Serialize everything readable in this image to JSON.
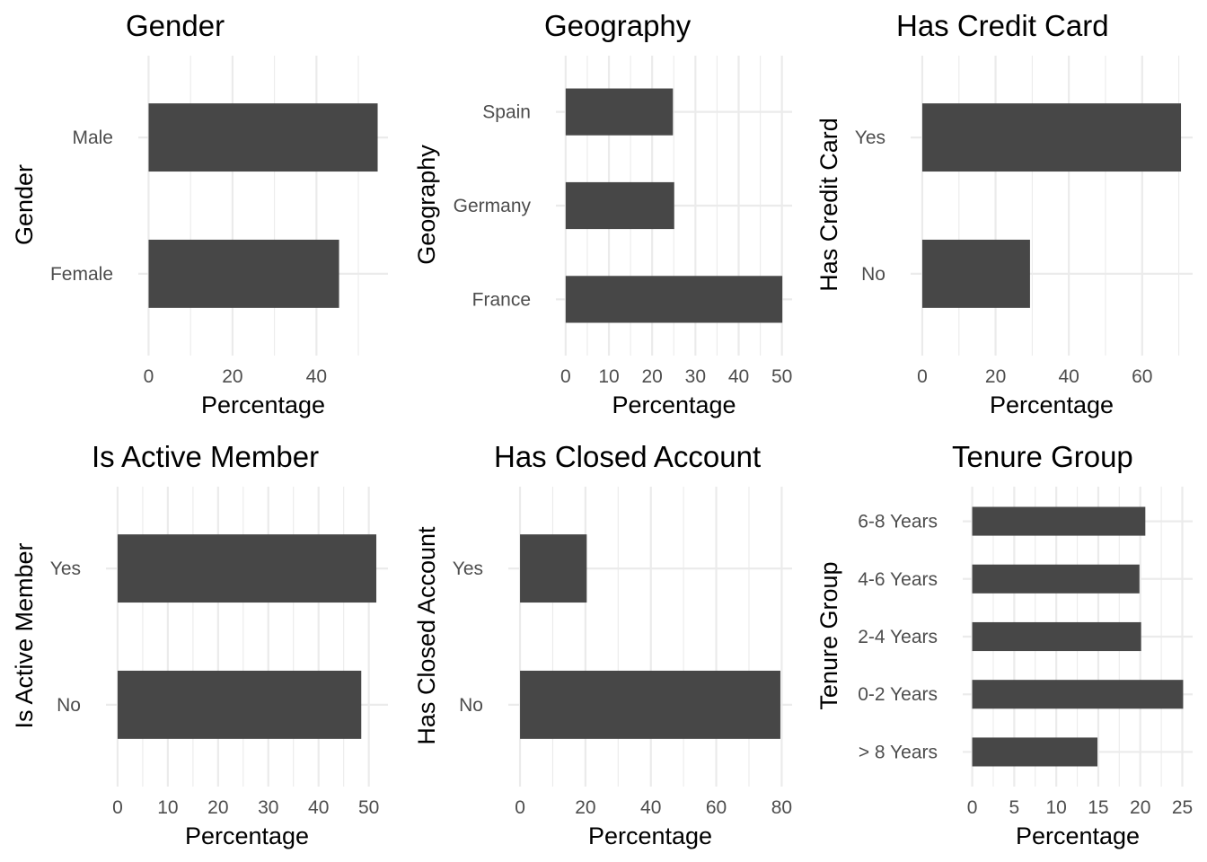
{
  "chart_data": [
    {
      "type": "bar",
      "orientation": "horizontal",
      "title": "Gender",
      "xlabel": "Percentage",
      "ylabel": "Gender",
      "categories": [
        "Female",
        "Male"
      ],
      "values": [
        45.4,
        54.6
      ],
      "xlim": [
        0,
        54.6
      ],
      "xticks": [
        0,
        20,
        40
      ],
      "grid": true,
      "bar_color": "#474747"
    },
    {
      "type": "bar",
      "orientation": "horizontal",
      "title": "Geography",
      "xlabel": "Percentage",
      "ylabel": "Geography",
      "categories": [
        "France",
        "Germany",
        "Spain"
      ],
      "values": [
        50.1,
        25.1,
        24.8
      ],
      "xlim": [
        0,
        50.1
      ],
      "xticks": [
        0,
        10,
        20,
        30,
        40,
        50
      ],
      "grid": true,
      "bar_color": "#474747"
    },
    {
      "type": "bar",
      "orientation": "horizontal",
      "title": "Has Credit Card",
      "xlabel": "Percentage",
      "ylabel": "Has Credit Card",
      "categories": [
        "No",
        "Yes"
      ],
      "values": [
        29.4,
        70.6
      ],
      "xlim": [
        0,
        70.6
      ],
      "xticks": [
        0,
        20,
        40,
        60
      ],
      "grid": true,
      "bar_color": "#474747"
    },
    {
      "type": "bar",
      "orientation": "horizontal",
      "title": "Is Active Member",
      "xlabel": "Percentage",
      "ylabel": "Is Active Member",
      "categories": [
        "No",
        "Yes"
      ],
      "values": [
        48.5,
        51.5
      ],
      "xlim": [
        0,
        51.5
      ],
      "xticks": [
        0,
        10,
        20,
        30,
        40,
        50
      ],
      "grid": true,
      "bar_color": "#474747"
    },
    {
      "type": "bar",
      "orientation": "horizontal",
      "title": "Has Closed Account",
      "xlabel": "Percentage",
      "ylabel": "Has Closed Account",
      "categories": [
        "No",
        "Yes"
      ],
      "values": [
        79.6,
        20.4
      ],
      "xlim": [
        0,
        79.6
      ],
      "xticks": [
        0,
        20,
        40,
        60,
        80
      ],
      "grid": true,
      "bar_color": "#474747"
    },
    {
      "type": "bar",
      "orientation": "horizontal",
      "title": "Tenure Group",
      "xlabel": "Percentage",
      "ylabel": "Tenure Group",
      "categories": [
        "> 8 Years",
        "0-2 Years",
        "2-4 Years",
        "4-6 Years",
        "6-8 Years"
      ],
      "values": [
        14.9,
        25.1,
        20.1,
        19.9,
        20.6
      ],
      "xlim": [
        0,
        25.1
      ],
      "xticks": [
        0,
        5,
        10,
        15,
        20,
        25
      ],
      "grid": true,
      "bar_color": "#474747"
    }
  ]
}
